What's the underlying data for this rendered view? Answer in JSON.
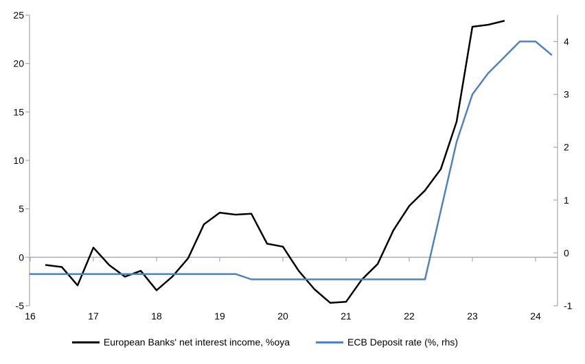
{
  "chart_data": {
    "type": "line",
    "title": "",
    "x_axis": {
      "min": 16,
      "max": 24.35,
      "ticks": [
        16,
        17,
        18,
        19,
        20,
        21,
        22,
        23,
        24
      ],
      "tick_labels": [
        "16",
        "17",
        "18",
        "19",
        "20",
        "21",
        "22",
        "23",
        "24"
      ]
    },
    "left_axis": {
      "min": -5,
      "max": 25,
      "ticks": [
        -5,
        0,
        5,
        10,
        15,
        20,
        25
      ],
      "tick_labels": [
        "-5",
        "0",
        "5",
        "10",
        "15",
        "20",
        "25"
      ]
    },
    "right_axis": {
      "min": -1,
      "max": 4.5,
      "ticks": [
        -1,
        0,
        1,
        2,
        3,
        4
      ],
      "tick_labels": [
        "-1",
        "0",
        "1",
        "2",
        "3",
        "4"
      ]
    },
    "grid": "zero_line_only",
    "legend_position": "bottom",
    "series": [
      {
        "name": "European Banks' net interest income, %oya",
        "axis": "left",
        "color": "#000000",
        "x": [
          16.25,
          16.5,
          16.75,
          17.0,
          17.25,
          17.5,
          17.75,
          18.0,
          18.25,
          18.5,
          18.75,
          19.0,
          19.25,
          19.5,
          19.75,
          20.0,
          20.25,
          20.5,
          20.75,
          21.0,
          21.25,
          21.5,
          21.75,
          22.0,
          22.25,
          22.5,
          22.75,
          23.0,
          23.25,
          23.5
        ],
        "values": [
          -0.8,
          -1.0,
          -2.9,
          1.0,
          -0.8,
          -2.0,
          -1.4,
          -3.4,
          -2.0,
          -0.1,
          3.4,
          4.6,
          4.4,
          4.5,
          1.4,
          1.1,
          -1.4,
          -3.3,
          -4.7,
          -4.6,
          -2.3,
          -0.7,
          2.8,
          5.3,
          6.9,
          9.1,
          14.0,
          23.8,
          24.0,
          24.4
        ]
      },
      {
        "name": "ECB Deposit rate (%, rhs)",
        "axis": "right",
        "color": "#4f81bd",
        "x": [
          16.0,
          16.25,
          16.5,
          16.75,
          17.0,
          17.25,
          17.5,
          17.75,
          18.0,
          18.25,
          18.5,
          18.75,
          19.0,
          19.25,
          19.5,
          19.75,
          20.0,
          20.25,
          20.5,
          20.75,
          21.0,
          21.25,
          21.5,
          21.75,
          22.0,
          22.25,
          22.5,
          22.75,
          23.0,
          23.25,
          23.5,
          23.75,
          24.0,
          24.25
        ],
        "values": [
          -0.4,
          -0.4,
          -0.4,
          -0.4,
          -0.4,
          -0.4,
          -0.4,
          -0.4,
          -0.4,
          -0.4,
          -0.4,
          -0.4,
          -0.4,
          -0.4,
          -0.5,
          -0.5,
          -0.5,
          -0.5,
          -0.5,
          -0.5,
          -0.5,
          -0.5,
          -0.5,
          -0.5,
          -0.5,
          -0.5,
          0.8,
          2.1,
          3.0,
          3.4,
          3.7,
          4.0,
          4.0,
          3.75
        ]
      }
    ]
  },
  "colors": {
    "axis_line": "#a6a6a6",
    "zero_line": "#a6a6a6",
    "tick_text": "#000000"
  }
}
